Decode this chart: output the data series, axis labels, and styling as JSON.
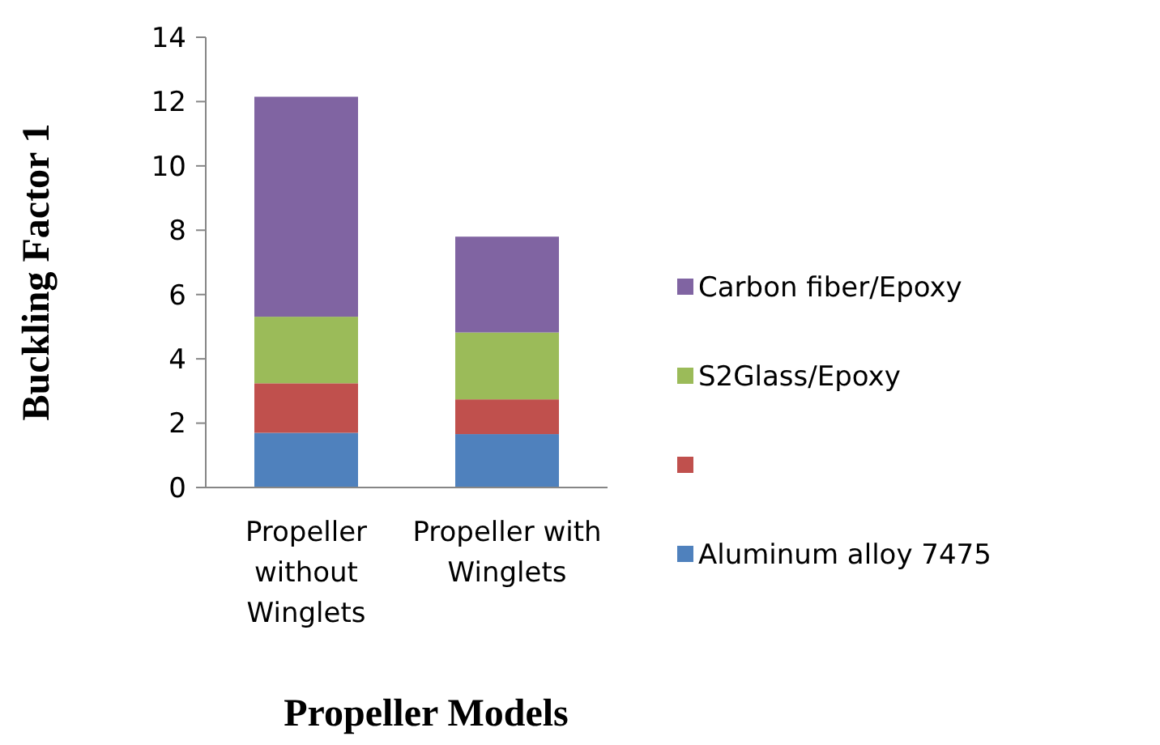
{
  "chart_data": {
    "type": "bar",
    "stacked": true,
    "xlabel": "Propeller Models",
    "ylabel": "Buckling Factor 1",
    "categories": [
      "Propeller without Winglets",
      "Propeller with Winglets"
    ],
    "series": [
      {
        "name": "Aluminum alloy 7475",
        "color": "#4f81bd",
        "values": [
          1.7,
          1.66
        ]
      },
      {
        "color": "#c0504d",
        "values": [
          1.54,
          1.08
        ]
      },
      {
        "name": "S2Glass/Epoxy",
        "color": "#9bbb59",
        "values": [
          2.07,
          2.08
        ]
      },
      {
        "name": "Carbon fiber/Epoxy",
        "color": "#8064a2",
        "values": [
          6.84,
          2.98
        ]
      }
    ],
    "ylim": [
      0,
      14
    ],
    "yticks": [
      0,
      2,
      4,
      6,
      8,
      10,
      12,
      14
    ],
    "grid": false,
    "legend": "right"
  }
}
